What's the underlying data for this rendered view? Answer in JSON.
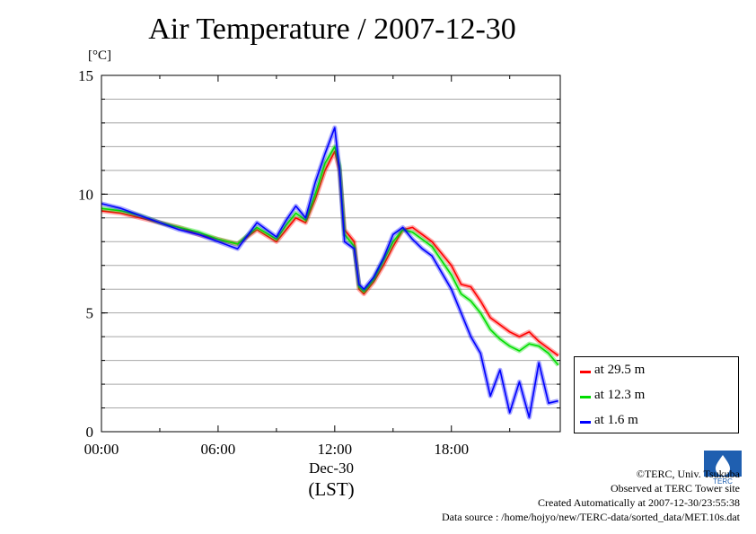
{
  "title": "Air Temperature / 2007-12-30",
  "unit_label": "[°C]",
  "x_axis": {
    "date_label": "Dec-30",
    "zone_label": "(LST)"
  },
  "logo": {
    "text": "TERC",
    "icon": "terc-logo-icon"
  },
  "credits": [
    "©TERC, Univ. Tsukuba",
    "Observed at TERC Tower site",
    "Created Automatically at 2007-12-30/23:55:38",
    "Data source : /home/hojyo/new/TERC-data/sorted_data/MET.10s.dat"
  ],
  "colors": {
    "red": "#ff0000",
    "green": "#00dd00",
    "blue": "#0000ff"
  },
  "chart_data": {
    "type": "line",
    "title": "Air Temperature / 2007-12-30",
    "ylabel": "[°C]",
    "xlabel": "(LST)",
    "x": [
      0,
      1,
      2,
      3,
      4,
      5,
      6,
      7,
      8,
      9,
      9.5,
      10,
      10.5,
      11,
      11.5,
      12,
      12.25,
      12.5,
      13,
      13.25,
      13.5,
      14,
      14.5,
      15,
      15.5,
      16,
      16.5,
      17,
      18,
      18.5,
      19,
      19.5,
      20,
      20.5,
      21,
      21.5,
      22,
      22.5,
      23,
      23.5
    ],
    "xticks": [
      "00:00",
      "06:00",
      "12:00",
      "18:00"
    ],
    "xtick_values": [
      0,
      6,
      12,
      18
    ],
    "xlim": [
      0,
      23.6
    ],
    "yticks": [
      0,
      5,
      10,
      15
    ],
    "ylim": [
      0,
      15
    ],
    "grid": true,
    "legend": "outside-right",
    "series": [
      {
        "name": "at 29.5 m",
        "color": "#ff0000",
        "values": [
          9.3,
          9.2,
          9.0,
          8.8,
          8.6,
          8.3,
          8.1,
          7.9,
          8.5,
          8.0,
          8.5,
          9.0,
          8.8,
          9.8,
          11.0,
          11.8,
          11.0,
          8.5,
          8.0,
          6.0,
          5.8,
          6.3,
          7.0,
          7.8,
          8.5,
          8.6,
          8.3,
          8.0,
          7.0,
          6.2,
          6.1,
          5.5,
          4.8,
          4.5,
          4.2,
          4.0,
          4.2,
          3.8,
          3.5,
          3.2
        ]
      },
      {
        "name": "at 12.3 m",
        "color": "#00dd00",
        "values": [
          9.4,
          9.3,
          9.1,
          8.8,
          8.6,
          8.4,
          8.1,
          7.9,
          8.6,
          8.1,
          8.7,
          9.2,
          8.9,
          10.0,
          11.3,
          12.0,
          11.2,
          8.3,
          7.8,
          6.1,
          5.9,
          6.4,
          7.2,
          8.0,
          8.5,
          8.4,
          8.1,
          7.8,
          6.6,
          5.8,
          5.5,
          5.0,
          4.3,
          3.9,
          3.6,
          3.4,
          3.7,
          3.6,
          3.3,
          2.8
        ]
      },
      {
        "name": "at 1.6 m",
        "color": "#0000ff",
        "values": [
          9.6,
          9.4,
          9.1,
          8.8,
          8.5,
          8.3,
          8.0,
          7.7,
          8.8,
          8.2,
          8.9,
          9.5,
          9.0,
          10.5,
          11.7,
          12.8,
          11.0,
          8.0,
          7.7,
          6.2,
          6.0,
          6.5,
          7.3,
          8.3,
          8.6,
          8.1,
          7.7,
          7.4,
          6.0,
          5.0,
          4.0,
          3.3,
          1.5,
          2.6,
          0.8,
          2.1,
          0.6,
          2.9,
          1.2,
          1.3
        ]
      }
    ]
  }
}
